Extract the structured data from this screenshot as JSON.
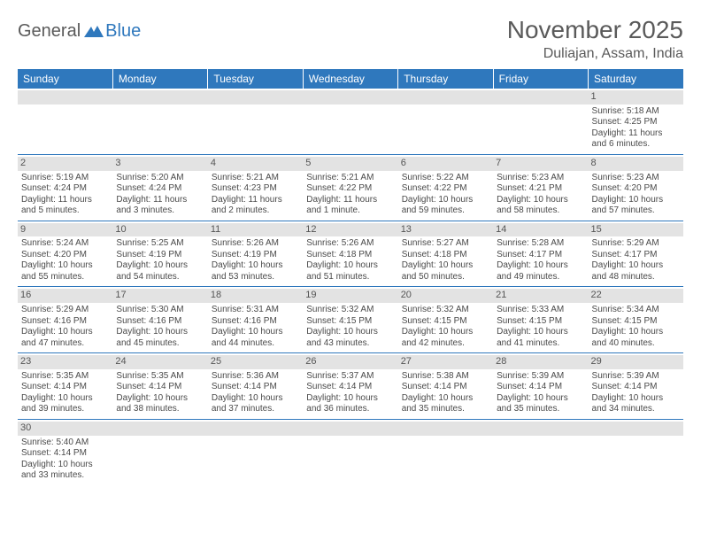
{
  "brand": {
    "general": "General",
    "blue": "Blue"
  },
  "title": "November 2025",
  "location": "Duliajan, Assam, India",
  "colors": {
    "header_bg": "#2f78bd",
    "header_text": "#ffffff",
    "daynum_bg": "#e3e3e3",
    "border": "#2f78bd",
    "body_text": "#4a4a4a",
    "title_text": "#5a5a5a"
  },
  "weekdays": [
    "Sunday",
    "Monday",
    "Tuesday",
    "Wednesday",
    "Thursday",
    "Friday",
    "Saturday"
  ],
  "cells": [
    {
      "day": "",
      "lines": [
        "",
        "",
        "",
        ""
      ]
    },
    {
      "day": "",
      "lines": [
        "",
        "",
        "",
        ""
      ]
    },
    {
      "day": "",
      "lines": [
        "",
        "",
        "",
        ""
      ]
    },
    {
      "day": "",
      "lines": [
        "",
        "",
        "",
        ""
      ]
    },
    {
      "day": "",
      "lines": [
        "",
        "",
        "",
        ""
      ]
    },
    {
      "day": "",
      "lines": [
        "",
        "",
        "",
        ""
      ]
    },
    {
      "day": "1",
      "lines": [
        "Sunrise: 5:18 AM",
        "Sunset: 4:25 PM",
        "Daylight: 11 hours",
        "and 6 minutes."
      ]
    },
    {
      "day": "2",
      "lines": [
        "Sunrise: 5:19 AM",
        "Sunset: 4:24 PM",
        "Daylight: 11 hours",
        "and 5 minutes."
      ]
    },
    {
      "day": "3",
      "lines": [
        "Sunrise: 5:20 AM",
        "Sunset: 4:24 PM",
        "Daylight: 11 hours",
        "and 3 minutes."
      ]
    },
    {
      "day": "4",
      "lines": [
        "Sunrise: 5:21 AM",
        "Sunset: 4:23 PM",
        "Daylight: 11 hours",
        "and 2 minutes."
      ]
    },
    {
      "day": "5",
      "lines": [
        "Sunrise: 5:21 AM",
        "Sunset: 4:22 PM",
        "Daylight: 11 hours",
        "and 1 minute."
      ]
    },
    {
      "day": "6",
      "lines": [
        "Sunrise: 5:22 AM",
        "Sunset: 4:22 PM",
        "Daylight: 10 hours",
        "and 59 minutes."
      ]
    },
    {
      "day": "7",
      "lines": [
        "Sunrise: 5:23 AM",
        "Sunset: 4:21 PM",
        "Daylight: 10 hours",
        "and 58 minutes."
      ]
    },
    {
      "day": "8",
      "lines": [
        "Sunrise: 5:23 AM",
        "Sunset: 4:20 PM",
        "Daylight: 10 hours",
        "and 57 minutes."
      ]
    },
    {
      "day": "9",
      "lines": [
        "Sunrise: 5:24 AM",
        "Sunset: 4:20 PM",
        "Daylight: 10 hours",
        "and 55 minutes."
      ]
    },
    {
      "day": "10",
      "lines": [
        "Sunrise: 5:25 AM",
        "Sunset: 4:19 PM",
        "Daylight: 10 hours",
        "and 54 minutes."
      ]
    },
    {
      "day": "11",
      "lines": [
        "Sunrise: 5:26 AM",
        "Sunset: 4:19 PM",
        "Daylight: 10 hours",
        "and 53 minutes."
      ]
    },
    {
      "day": "12",
      "lines": [
        "Sunrise: 5:26 AM",
        "Sunset: 4:18 PM",
        "Daylight: 10 hours",
        "and 51 minutes."
      ]
    },
    {
      "day": "13",
      "lines": [
        "Sunrise: 5:27 AM",
        "Sunset: 4:18 PM",
        "Daylight: 10 hours",
        "and 50 minutes."
      ]
    },
    {
      "day": "14",
      "lines": [
        "Sunrise: 5:28 AM",
        "Sunset: 4:17 PM",
        "Daylight: 10 hours",
        "and 49 minutes."
      ]
    },
    {
      "day": "15",
      "lines": [
        "Sunrise: 5:29 AM",
        "Sunset: 4:17 PM",
        "Daylight: 10 hours",
        "and 48 minutes."
      ]
    },
    {
      "day": "16",
      "lines": [
        "Sunrise: 5:29 AM",
        "Sunset: 4:16 PM",
        "Daylight: 10 hours",
        "and 47 minutes."
      ]
    },
    {
      "day": "17",
      "lines": [
        "Sunrise: 5:30 AM",
        "Sunset: 4:16 PM",
        "Daylight: 10 hours",
        "and 45 minutes."
      ]
    },
    {
      "day": "18",
      "lines": [
        "Sunrise: 5:31 AM",
        "Sunset: 4:16 PM",
        "Daylight: 10 hours",
        "and 44 minutes."
      ]
    },
    {
      "day": "19",
      "lines": [
        "Sunrise: 5:32 AM",
        "Sunset: 4:15 PM",
        "Daylight: 10 hours",
        "and 43 minutes."
      ]
    },
    {
      "day": "20",
      "lines": [
        "Sunrise: 5:32 AM",
        "Sunset: 4:15 PM",
        "Daylight: 10 hours",
        "and 42 minutes."
      ]
    },
    {
      "day": "21",
      "lines": [
        "Sunrise: 5:33 AM",
        "Sunset: 4:15 PM",
        "Daylight: 10 hours",
        "and 41 minutes."
      ]
    },
    {
      "day": "22",
      "lines": [
        "Sunrise: 5:34 AM",
        "Sunset: 4:15 PM",
        "Daylight: 10 hours",
        "and 40 minutes."
      ]
    },
    {
      "day": "23",
      "lines": [
        "Sunrise: 5:35 AM",
        "Sunset: 4:14 PM",
        "Daylight: 10 hours",
        "and 39 minutes."
      ]
    },
    {
      "day": "24",
      "lines": [
        "Sunrise: 5:35 AM",
        "Sunset: 4:14 PM",
        "Daylight: 10 hours",
        "and 38 minutes."
      ]
    },
    {
      "day": "25",
      "lines": [
        "Sunrise: 5:36 AM",
        "Sunset: 4:14 PM",
        "Daylight: 10 hours",
        "and 37 minutes."
      ]
    },
    {
      "day": "26",
      "lines": [
        "Sunrise: 5:37 AM",
        "Sunset: 4:14 PM",
        "Daylight: 10 hours",
        "and 36 minutes."
      ]
    },
    {
      "day": "27",
      "lines": [
        "Sunrise: 5:38 AM",
        "Sunset: 4:14 PM",
        "Daylight: 10 hours",
        "and 35 minutes."
      ]
    },
    {
      "day": "28",
      "lines": [
        "Sunrise: 5:39 AM",
        "Sunset: 4:14 PM",
        "Daylight: 10 hours",
        "and 35 minutes."
      ]
    },
    {
      "day": "29",
      "lines": [
        "Sunrise: 5:39 AM",
        "Sunset: 4:14 PM",
        "Daylight: 10 hours",
        "and 34 minutes."
      ]
    },
    {
      "day": "30",
      "lines": [
        "Sunrise: 5:40 AM",
        "Sunset: 4:14 PM",
        "Daylight: 10 hours",
        "and 33 minutes."
      ]
    },
    {
      "day": "",
      "lines": [
        "",
        "",
        "",
        ""
      ]
    },
    {
      "day": "",
      "lines": [
        "",
        "",
        "",
        ""
      ]
    },
    {
      "day": "",
      "lines": [
        "",
        "",
        "",
        ""
      ]
    },
    {
      "day": "",
      "lines": [
        "",
        "",
        "",
        ""
      ]
    },
    {
      "day": "",
      "lines": [
        "",
        "",
        "",
        ""
      ]
    },
    {
      "day": "",
      "lines": [
        "",
        "",
        "",
        ""
      ]
    }
  ]
}
